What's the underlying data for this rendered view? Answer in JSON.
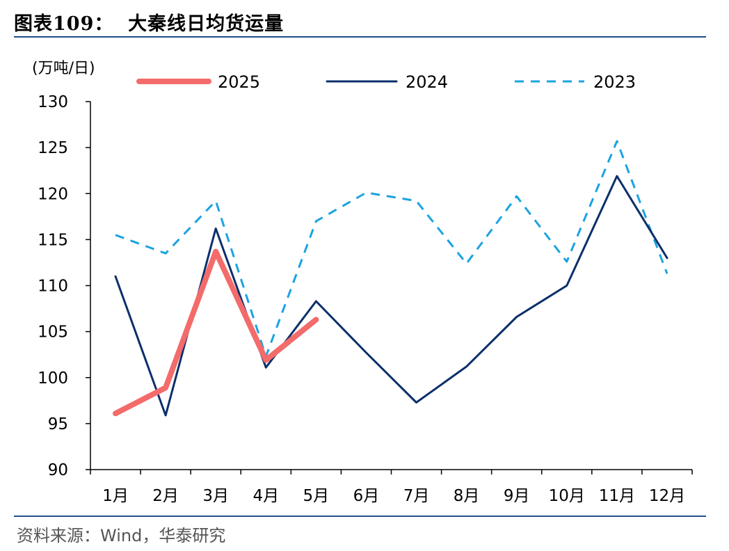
{
  "title": "图表109：  大秦线日均货运量",
  "unit": "(万吨/日)",
  "source": "资料来源：Wind，华泰研究",
  "chart_data": {
    "type": "line",
    "title": "图表109：  大秦线日均货运量",
    "ylabel": "(万吨/日)",
    "xlabel": "",
    "categories": [
      "1月",
      "2月",
      "3月",
      "4月",
      "5月",
      "6月",
      "7月",
      "8月",
      "9月",
      "10月",
      "11月",
      "12月"
    ],
    "ylim": [
      90,
      130
    ],
    "yticks": [
      90,
      95,
      100,
      105,
      110,
      115,
      120,
      125,
      130
    ],
    "grid": false,
    "legend_position": "top",
    "series": [
      {
        "name": "2025",
        "color": "#f36b6b",
        "style": "thick-solid",
        "values": [
          96.1,
          98.9,
          113.7,
          101.9,
          106.3,
          null,
          null,
          null,
          null,
          null,
          null,
          null
        ]
      },
      {
        "name": "2024",
        "color": "#0c2f6b",
        "style": "solid",
        "values": [
          111.0,
          95.9,
          116.2,
          101.1,
          108.3,
          102.7,
          97.3,
          101.2,
          106.6,
          110.0,
          121.9,
          113.0
        ]
      },
      {
        "name": "2023",
        "color": "#1aa3e0",
        "style": "dashed",
        "values": [
          115.5,
          113.5,
          119.2,
          102.3,
          117.0,
          120.1,
          119.2,
          112.4,
          119.7,
          112.6,
          125.7,
          111.3
        ]
      }
    ]
  }
}
